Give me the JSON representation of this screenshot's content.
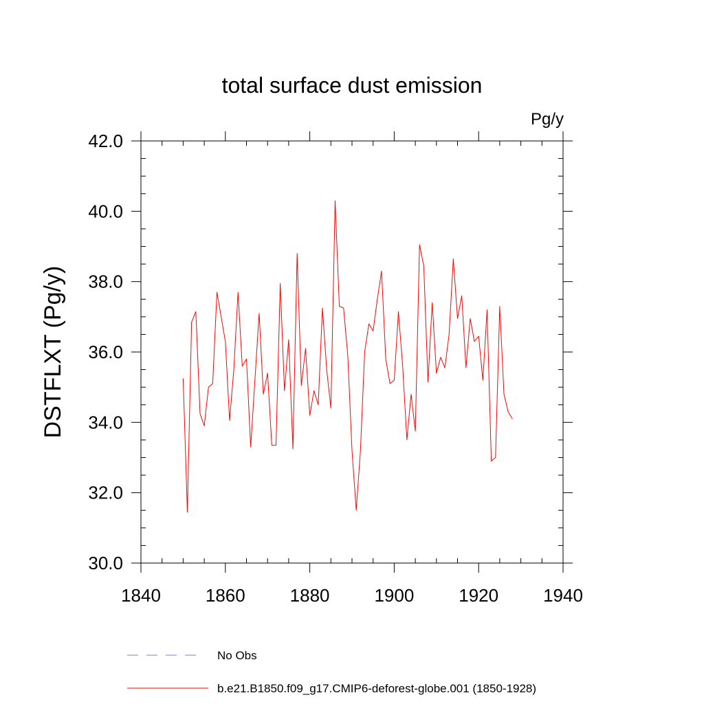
{
  "chart_data": {
    "type": "line",
    "title": "total surface dust emission",
    "units_label": "Pg/y",
    "ylabel": "DSTFLXT  (Pg/y)",
    "xlabel": "",
    "xlim": [
      1840,
      1940
    ],
    "ylim": [
      30.0,
      42.0
    ],
    "x_major_ticks": [
      1840,
      1860,
      1880,
      1900,
      1920,
      1940
    ],
    "x_tick_labels": [
      "1840",
      "1860",
      "1880",
      "1900",
      "1920",
      "1940"
    ],
    "x_minor_step": 5,
    "y_major_ticks": [
      30.0,
      32.0,
      34.0,
      36.0,
      38.0,
      40.0,
      42.0
    ],
    "y_tick_labels": [
      "30.0",
      "32.0",
      "34.0",
      "36.0",
      "38.0",
      "40.0",
      "42.0"
    ],
    "y_minor_step": 0.5,
    "grid": false,
    "legend_position": "bottom",
    "series": [
      {
        "name": "b.e21.B1850.f09_g17.CMIP6-deforest-globe.001 (1850-1928)",
        "color": "#ff0000",
        "style": "solid",
        "x": [
          1850,
          1851,
          1852,
          1853,
          1854,
          1855,
          1856,
          1857,
          1858,
          1859,
          1860,
          1861,
          1862,
          1863,
          1864,
          1865,
          1866,
          1867,
          1868,
          1869,
          1870,
          1871,
          1872,
          1873,
          1874,
          1875,
          1876,
          1877,
          1878,
          1879,
          1880,
          1881,
          1882,
          1883,
          1884,
          1885,
          1886,
          1887,
          1888,
          1889,
          1890,
          1891,
          1892,
          1893,
          1894,
          1895,
          1896,
          1897,
          1898,
          1899,
          1900,
          1901,
          1902,
          1903,
          1904,
          1905,
          1906,
          1907,
          1908,
          1909,
          1910,
          1911,
          1912,
          1913,
          1914,
          1915,
          1916,
          1917,
          1918,
          1919,
          1920,
          1921,
          1922,
          1923,
          1924,
          1925,
          1926,
          1927,
          1928
        ],
        "values": [
          35.25,
          31.45,
          36.85,
          37.15,
          34.25,
          33.9,
          35.0,
          35.1,
          37.7,
          37.0,
          36.3,
          34.05,
          35.5,
          37.7,
          35.6,
          35.8,
          33.3,
          35.2,
          37.1,
          34.8,
          35.4,
          33.35,
          33.35,
          37.95,
          34.9,
          36.35,
          33.25,
          38.8,
          35.05,
          36.1,
          34.2,
          34.9,
          34.5,
          37.25,
          35.5,
          34.4,
          40.3,
          37.3,
          37.25,
          35.9,
          33.2,
          31.5,
          33.2,
          36.0,
          36.8,
          36.6,
          37.5,
          38.3,
          35.8,
          35.1,
          35.2,
          37.15,
          35.6,
          33.5,
          34.8,
          33.75,
          39.05,
          38.45,
          35.15,
          37.4,
          35.4,
          35.85,
          35.55,
          36.5,
          38.65,
          36.95,
          37.6,
          35.55,
          36.95,
          36.3,
          36.45,
          35.2,
          37.2,
          32.9,
          33.0,
          37.3,
          34.8,
          34.3,
          34.1
        ]
      },
      {
        "name": "No Obs",
        "color": "#7b7bd8",
        "style": "dashed",
        "x": [],
        "values": []
      }
    ]
  }
}
